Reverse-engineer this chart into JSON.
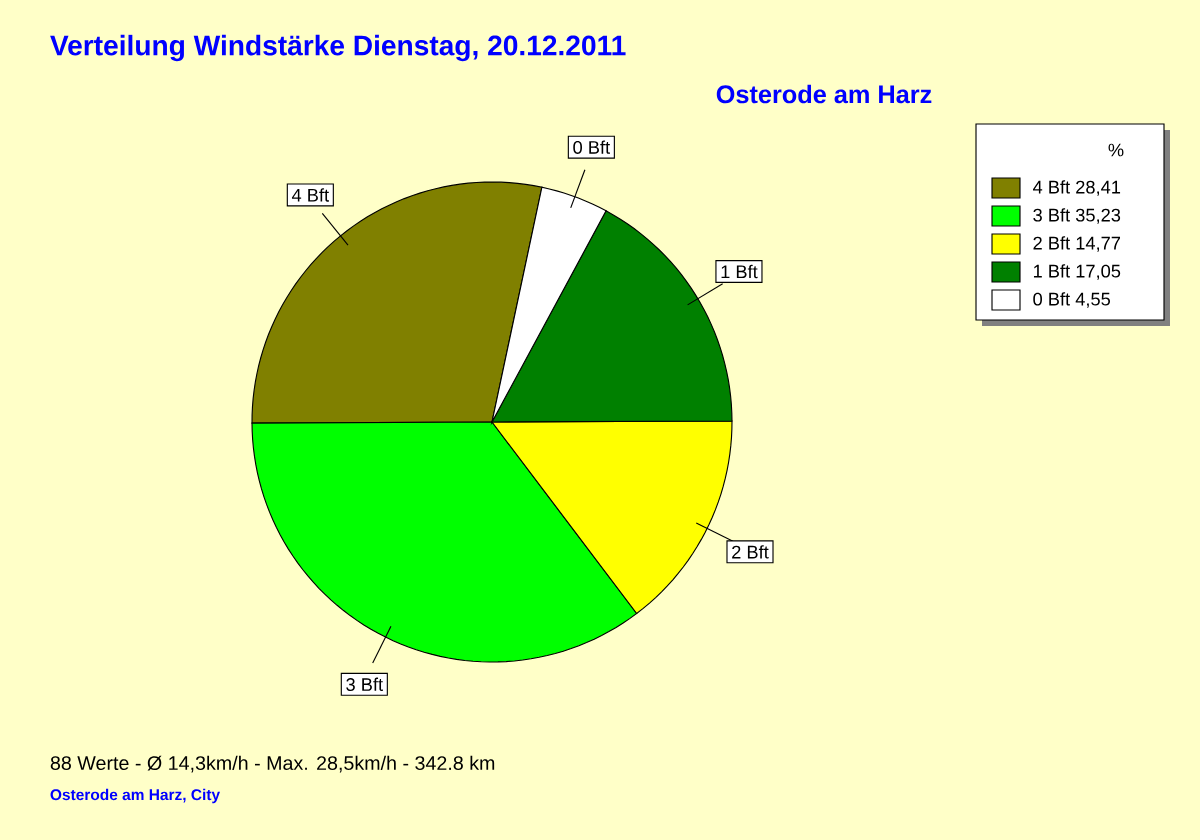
{
  "chart_data": {
    "type": "pie",
    "title": "Verteilung Windstärke  Dienstag, 20.12.2011",
    "subtitle": "Osterode am Harz",
    "legend_title": "%",
    "categories": [
      "4 Bft",
      "3 Bft",
      "2 Bft",
      "1 Bft",
      "0 Bft"
    ],
    "values": [
      28.41,
      35.23,
      14.77,
      17.05,
      4.55
    ],
    "value_labels": [
      "28,41",
      "35,23",
      "14,77",
      "17,05",
      "4,55"
    ],
    "colors": [
      "#808000",
      "#00ff00",
      "#ffff00",
      "#008000",
      "#ffffff"
    ],
    "legend": "top right",
    "annotations": [
      "88 Werte   -   Ø 14,3km/h  -  Max. 28,5km/h   -   342.8 km",
      "Osterode am Harz, City"
    ]
  }
}
